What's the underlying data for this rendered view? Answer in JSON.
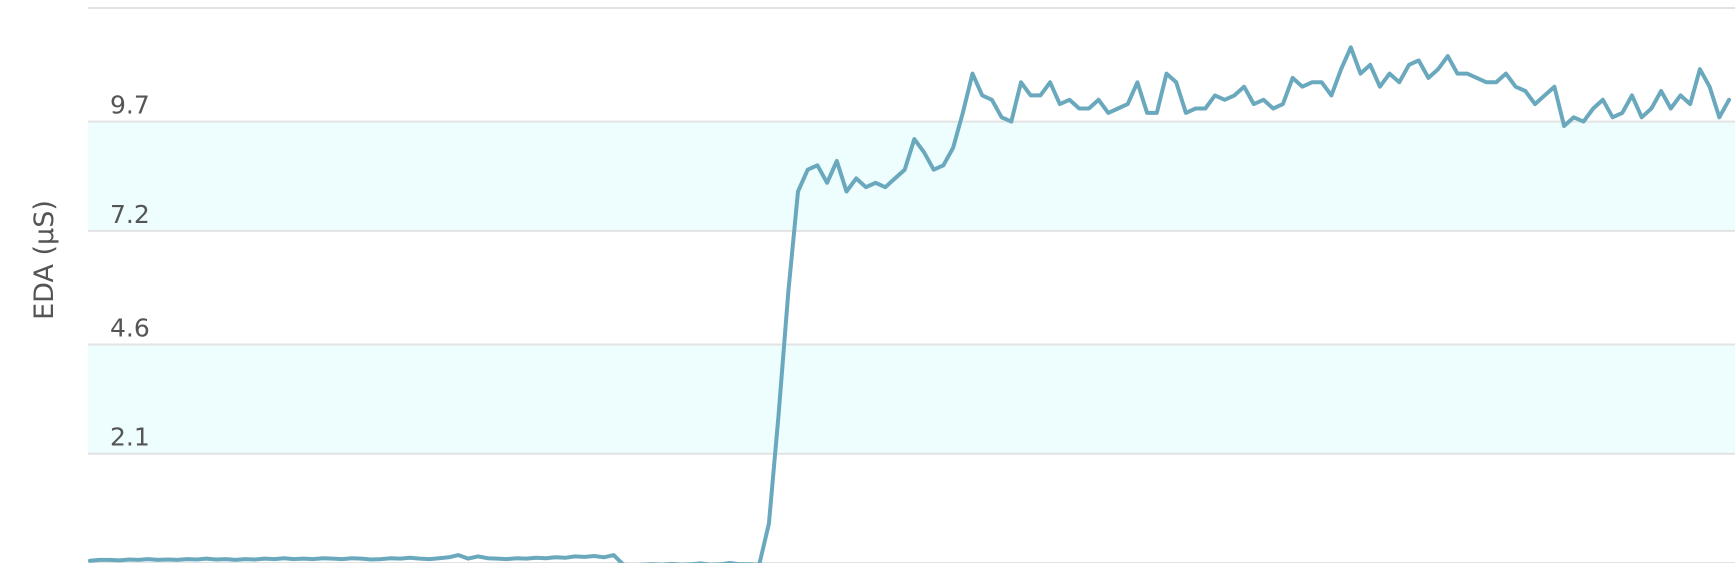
{
  "chart_data": {
    "type": "line",
    "title": "",
    "xlabel": "",
    "ylabel": "EDA (µS)",
    "y_ticks": [
      "2.1",
      "4.6",
      "7.2",
      "9.7"
    ],
    "ylim": [
      -0.4,
      12.3
    ],
    "grid": true,
    "alternating_bands": true,
    "colors": {
      "line": "#6aa9bd",
      "band": "#eefdfd",
      "grid": "#e3e3e3",
      "text": "#555555"
    },
    "series": [
      {
        "values": [
          -0.35,
          -0.33,
          -0.33,
          -0.34,
          -0.32,
          -0.33,
          -0.31,
          -0.33,
          -0.32,
          -0.33,
          -0.31,
          -0.32,
          -0.3,
          -0.32,
          -0.31,
          -0.33,
          -0.31,
          -0.32,
          -0.3,
          -0.31,
          -0.29,
          -0.31,
          -0.3,
          -0.31,
          -0.29,
          -0.3,
          -0.31,
          -0.29,
          -0.3,
          -0.32,
          -0.31,
          -0.29,
          -0.3,
          -0.28,
          -0.3,
          -0.31,
          -0.29,
          -0.27,
          -0.22,
          -0.3,
          -0.25,
          -0.29,
          -0.3,
          -0.31,
          -0.29,
          -0.3,
          -0.28,
          -0.29,
          -0.27,
          -0.28,
          -0.25,
          -0.26,
          -0.24,
          -0.27,
          -0.22,
          -0.44,
          -0.45,
          -0.44,
          -0.43,
          -0.44,
          -0.42,
          -0.44,
          -0.43,
          -0.41,
          -0.44,
          -0.43,
          -0.4,
          -0.43,
          -0.43,
          -0.44,
          0.5,
          3.0,
          5.8,
          8.1,
          8.6,
          8.7,
          8.3,
          8.8,
          8.1,
          8.4,
          8.2,
          8.3,
          8.2,
          8.4,
          8.6,
          9.3,
          9.0,
          8.6,
          8.7,
          9.1,
          9.9,
          10.8,
          10.3,
          10.2,
          9.8,
          9.7,
          10.6,
          10.3,
          10.3,
          10.6,
          10.1,
          10.2,
          10.0,
          10.0,
          10.2,
          9.9,
          10.0,
          10.1,
          10.6,
          9.9,
          9.9,
          10.8,
          10.6,
          9.9,
          10.0,
          10.0,
          10.3,
          10.2,
          10.3,
          10.5,
          10.1,
          10.2,
          10.0,
          10.1,
          10.7,
          10.5,
          10.6,
          10.6,
          10.3,
          10.9,
          11.4,
          10.8,
          11.0,
          10.5,
          10.8,
          10.6,
          11.0,
          11.1,
          10.7,
          10.9,
          11.2,
          10.8,
          10.8,
          10.7,
          10.6,
          10.6,
          10.8,
          10.5,
          10.4,
          10.1,
          10.3,
          10.5,
          9.6,
          9.8,
          9.7,
          10.0,
          10.2,
          9.8,
          9.9,
          10.3,
          9.8,
          10.0,
          10.4,
          10.0,
          10.3,
          10.1,
          10.9,
          10.5,
          9.8,
          10.2
        ]
      }
    ]
  }
}
